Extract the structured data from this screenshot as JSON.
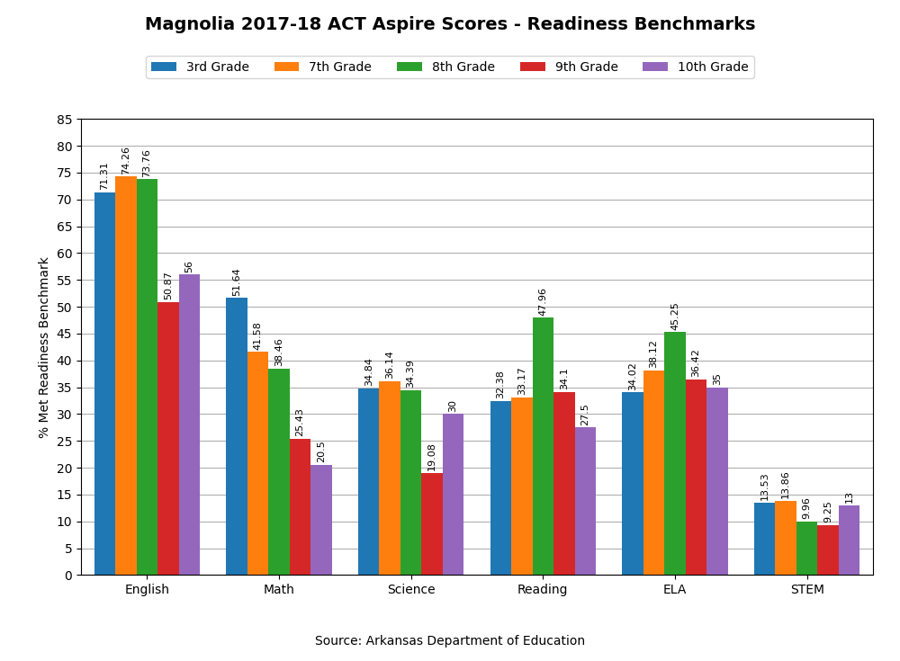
{
  "chart_data": {
    "type": "bar",
    "title": "Magnolia 2017-18 ACT Aspire Scores - Readiness Benchmarks",
    "y_label": "% Met Readiness Benchmark",
    "annotations": [
      "Source: Arkansas Department of Education"
    ],
    "categories": [
      "English",
      "Math",
      "Science",
      "Reading",
      "ELA",
      "STEM"
    ],
    "series": [
      {
        "name": "3rd Grade",
        "values": [
          71.31,
          51.64,
          34.84,
          32.38,
          34.02,
          13.53
        ]
      },
      {
        "name": "7th Grade",
        "values": [
          74.26,
          41.58,
          36.14,
          33.17,
          38.12,
          13.86
        ]
      },
      {
        "name": "8th Grade",
        "values": [
          73.76,
          38.46,
          34.39,
          47.96,
          45.25,
          9.96
        ]
      },
      {
        "name": "9th Grade",
        "values": [
          50.87,
          25.43,
          19.08,
          34.1,
          36.42,
          9.25
        ]
      },
      {
        "name": "10th Grade",
        "values": [
          56,
          20.5,
          30,
          27.5,
          35,
          13
        ]
      }
    ],
    "ylim": [
      0,
      85
    ],
    "yticks": [
      0,
      5,
      10,
      15,
      20,
      25,
      30,
      35,
      40,
      45,
      50,
      55,
      60,
      65,
      70,
      75,
      80,
      85
    ],
    "grid": true,
    "legend": "upper center",
    "data_labels": true
  }
}
